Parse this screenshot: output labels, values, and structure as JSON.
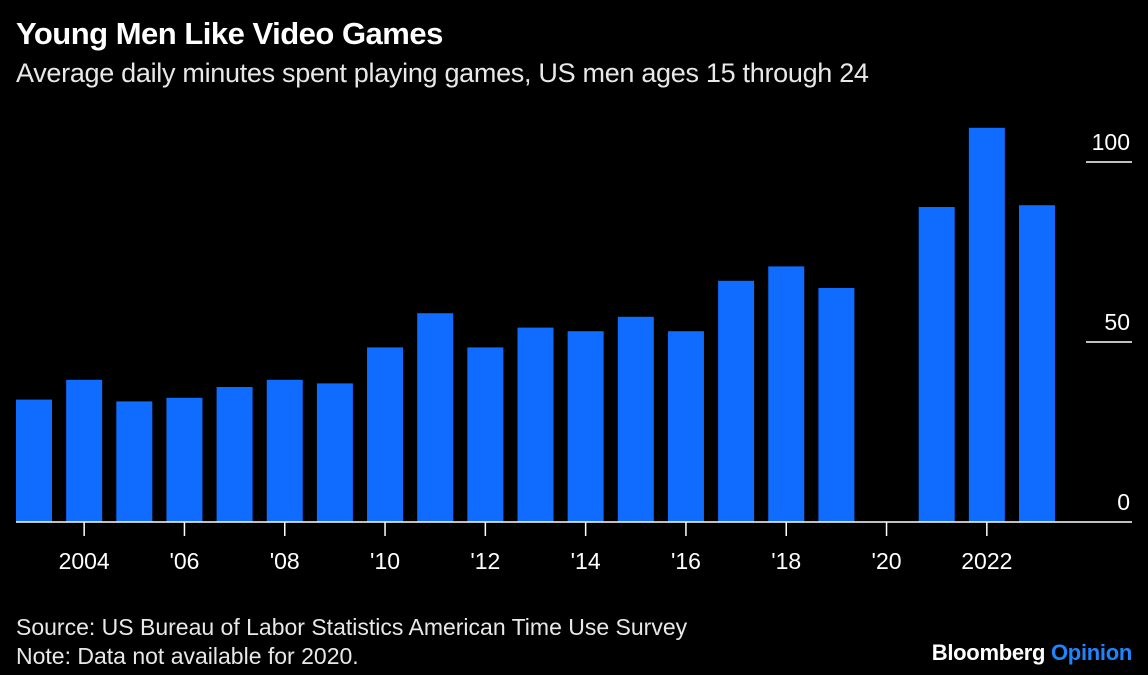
{
  "title": "Young Men Like Video Games",
  "subtitle": "Average daily minutes spent playing games, US men ages 15 through 24",
  "source": "Source: US Bureau of Labor Statistics American Time Use Survey",
  "note": "Note: Data not available for 2020.",
  "brand": {
    "name": "Bloomberg",
    "suffix": "Opinion"
  },
  "colors": {
    "bar": "#0f6cff",
    "background": "#000000",
    "brand_accent": "#1f84ff"
  },
  "chart_data": {
    "type": "bar",
    "categories": [
      2003,
      2004,
      2005,
      2006,
      2007,
      2008,
      2009,
      2010,
      2011,
      2012,
      2013,
      2014,
      2015,
      2016,
      2017,
      2018,
      2019,
      2020,
      2021,
      2022,
      2023
    ],
    "values": [
      34,
      39.5,
      33.5,
      34.5,
      37.5,
      39.5,
      38.5,
      48.5,
      58,
      48.5,
      54,
      53,
      57,
      53,
      67,
      71,
      65,
      null,
      87.5,
      109.5,
      88
    ],
    "x_tick_labels": [
      {
        "x": 2004,
        "label": "2004"
      },
      {
        "x": 2006,
        "label": "'06"
      },
      {
        "x": 2008,
        "label": "'08"
      },
      {
        "x": 2010,
        "label": "'10"
      },
      {
        "x": 2012,
        "label": "'12"
      },
      {
        "x": 2014,
        "label": "'14"
      },
      {
        "x": 2016,
        "label": "'16"
      },
      {
        "x": 2018,
        "label": "'18"
      },
      {
        "x": 2020,
        "label": "'20"
      },
      {
        "x": 2022,
        "label": "2022"
      }
    ],
    "y_ticks": [
      0,
      50,
      100
    ],
    "ylim": [
      0,
      110
    ],
    "y_axis_side": "right",
    "grid": false
  }
}
